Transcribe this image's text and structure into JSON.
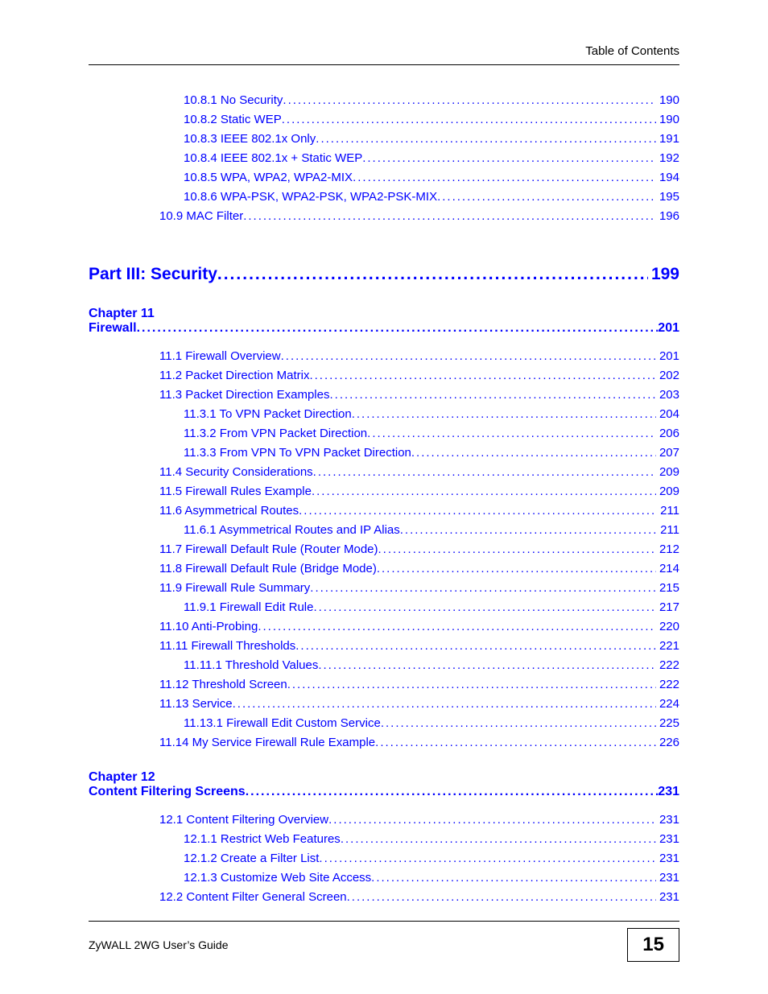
{
  "header": {
    "text": "Table of Contents"
  },
  "top_entries": [
    {
      "label": "10.8.1 No Security",
      "page": "190",
      "indent": 3
    },
    {
      "label": "10.8.2 Static WEP",
      "page": "190",
      "indent": 3
    },
    {
      "label": "10.8.3 IEEE 802.1x Only",
      "page": "191",
      "indent": 3
    },
    {
      "label": "10.8.4 IEEE 802.1x + Static WEP",
      "page": "192",
      "indent": 3
    },
    {
      "label": "10.8.5 WPA, WPA2, WPA2-MIX",
      "page": "194",
      "indent": 3
    },
    {
      "label": "10.8.6 WPA-PSK, WPA2-PSK, WPA2-PSK-MIX",
      "page": "195",
      "indent": 3
    },
    {
      "label": "10.9 MAC Filter",
      "page": "196",
      "indent": 2
    }
  ],
  "part": {
    "label": "Part III: Security",
    "page": "199"
  },
  "chapter11": {
    "head": "Chapter  11",
    "title": "Firewall",
    "page": "201",
    "entries": [
      {
        "label": "11.1 Firewall Overview",
        "page": "201",
        "indent": 2
      },
      {
        "label": "11.2 Packet Direction Matrix",
        "page": "202",
        "indent": 2
      },
      {
        "label": "11.3 Packet Direction Examples",
        "page": "203",
        "indent": 2
      },
      {
        "label": "11.3.1 To VPN Packet Direction",
        "page": "204",
        "indent": 3
      },
      {
        "label": "11.3.2 From VPN Packet Direction",
        "page": "206",
        "indent": 3
      },
      {
        "label": "11.3.3 From VPN To VPN Packet Direction",
        "page": "207",
        "indent": 3
      },
      {
        "label": "11.4 Security Considerations",
        "page": "209",
        "indent": 2
      },
      {
        "label": "11.5 Firewall Rules Example",
        "page": "209",
        "indent": 2
      },
      {
        "label": "11.6 Asymmetrical Routes",
        "page": "211",
        "indent": 2
      },
      {
        "label": "11.6.1 Asymmetrical Routes and IP Alias",
        "page": "211",
        "indent": 3
      },
      {
        "label": "11.7 Firewall Default Rule (Router Mode)",
        "page": "212",
        "indent": 2
      },
      {
        "label": "11.8 Firewall Default Rule (Bridge Mode) ",
        "page": "214",
        "indent": 2
      },
      {
        "label": "11.9 Firewall Rule Summary",
        "page": "215",
        "indent": 2
      },
      {
        "label": "11.9.1 Firewall Edit Rule   ",
        "page": "217",
        "indent": 3
      },
      {
        "label": "11.10 Anti-Probing   ",
        "page": "220",
        "indent": 2
      },
      {
        "label": "11.11 Firewall Thresholds   ",
        "page": "221",
        "indent": 2
      },
      {
        "label": "11.11.1 Threshold Values",
        "page": "222",
        "indent": 3
      },
      {
        "label": "11.12 Threshold Screen",
        "page": "222",
        "indent": 2
      },
      {
        "label": "11.13 Service",
        "page": "224",
        "indent": 2
      },
      {
        "label": "11.13.1 Firewall Edit Custom Service ",
        "page": "225",
        "indent": 3
      },
      {
        "label": "11.14 My Service Firewall Rule Example",
        "page": "226",
        "indent": 2
      }
    ]
  },
  "chapter12": {
    "head": "Chapter  12",
    "title": "Content Filtering Screens",
    "page": "231",
    "entries": [
      {
        "label": "12.1 Content Filtering Overview",
        "page": "231",
        "indent": 2
      },
      {
        "label": "12.1.1 Restrict Web Features",
        "page": "231",
        "indent": 3
      },
      {
        "label": "12.1.2 Create a Filter List",
        "page": "231",
        "indent": 3
      },
      {
        "label": "12.1.3 Customize Web Site Access ",
        "page": "231",
        "indent": 3
      },
      {
        "label": "12.2 Content Filter General Screen",
        "page": "231",
        "indent": 2
      }
    ]
  },
  "footer": {
    "title": "ZyWALL 2WG User’s Guide",
    "page_number": "15"
  },
  "colors": {
    "link": "#0000ff",
    "text": "#000000",
    "background": "#ffffff"
  }
}
